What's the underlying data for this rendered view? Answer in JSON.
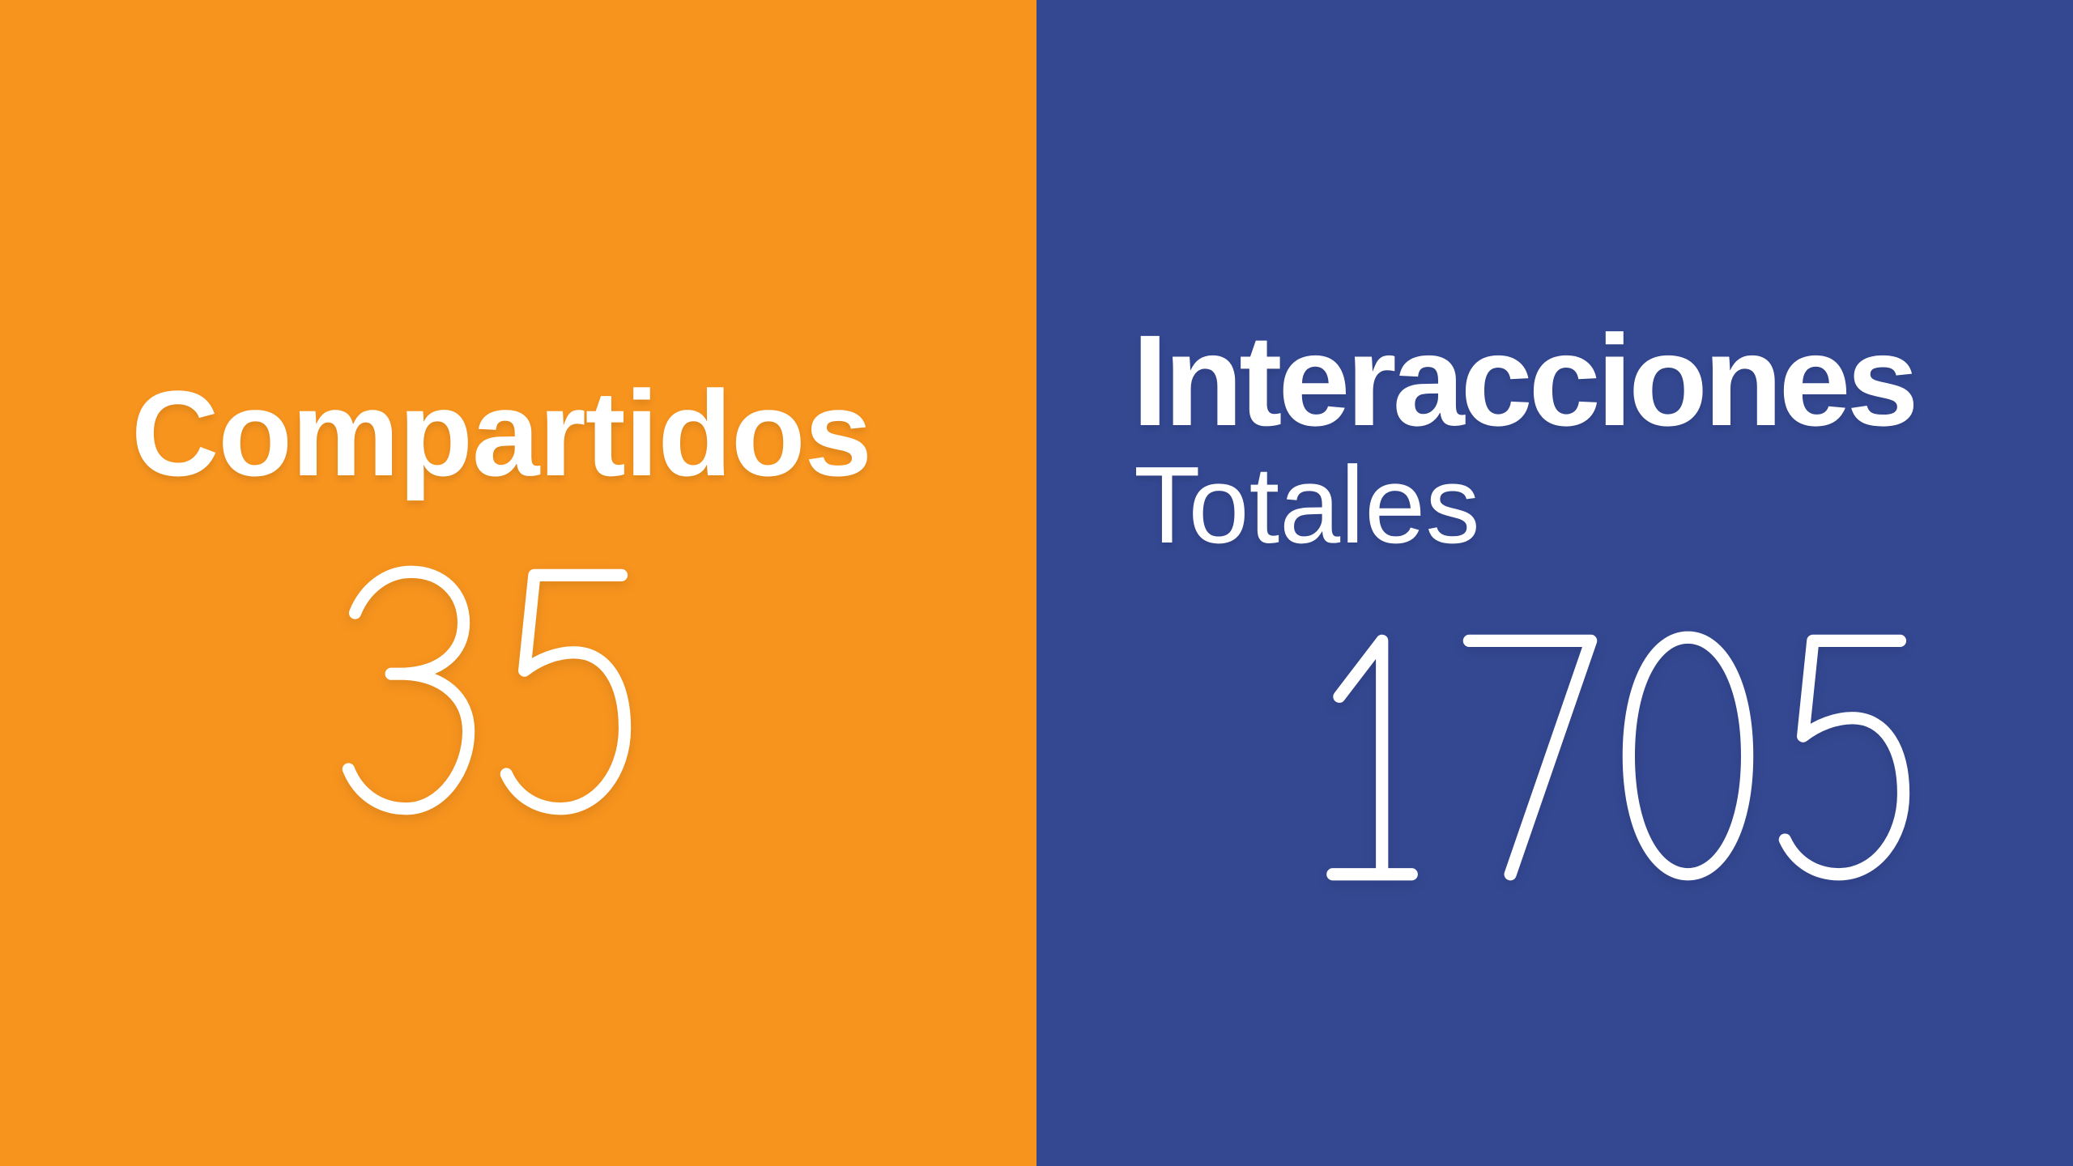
{
  "chart_data": {
    "type": "table",
    "title": "",
    "categories": [
      "Compartidos",
      "Interacciones Totales"
    ],
    "values": [
      35,
      1705
    ],
    "legend": "none",
    "layout": "split-screen KPI stat panels, left orange / right blue, white text"
  },
  "panels": {
    "shares": {
      "label": "Compartidos",
      "value": "35",
      "background_color": "#F7941E",
      "text_color": "#FFFFFF"
    },
    "interactions": {
      "label_line1": "Interacciones",
      "label_line2": "Totales",
      "value": "1705",
      "background_color": "#344892",
      "text_color": "#FFFFFF"
    }
  }
}
